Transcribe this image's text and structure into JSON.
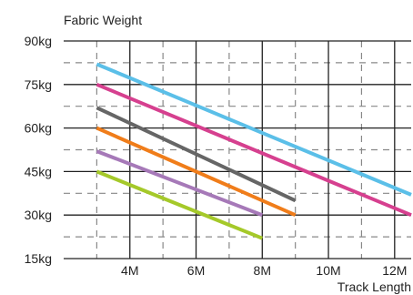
{
  "chart_data": {
    "type": "line",
    "title": "Fabric Weight",
    "xlabel": "Track Length",
    "ylabel": "",
    "xlim": [
      2.0,
      12.5
    ],
    "ylim": [
      15,
      90
    ],
    "x_ticks": [
      4,
      6,
      8,
      10,
      12
    ],
    "x_tick_labels": [
      "4M",
      "6M",
      "8M",
      "10M",
      "12M"
    ],
    "y_ticks": [
      15,
      30,
      45,
      60,
      75,
      90
    ],
    "y_tick_labels": [
      "15kg",
      "30kg",
      "45kg",
      "60kg",
      "75kg",
      "90kg"
    ],
    "grid": true,
    "legend": "none",
    "series": [
      {
        "color": "#5bbfe8",
        "x": [
          3,
          12.5
        ],
        "y": [
          82,
          37
        ]
      },
      {
        "color": "#d6408f",
        "x": [
          3,
          12.5
        ],
        "y": [
          75,
          30
        ]
      },
      {
        "color": "#666666",
        "x": [
          3,
          9
        ],
        "y": [
          67,
          35
        ]
      },
      {
        "color": "#f07d1a",
        "x": [
          3,
          9
        ],
        "y": [
          60,
          30
        ]
      },
      {
        "color": "#a679b8",
        "x": [
          3,
          8
        ],
        "y": [
          52,
          30
        ]
      },
      {
        "color": "#a5c92a",
        "x": [
          3,
          8
        ],
        "y": [
          45,
          22
        ]
      }
    ]
  }
}
